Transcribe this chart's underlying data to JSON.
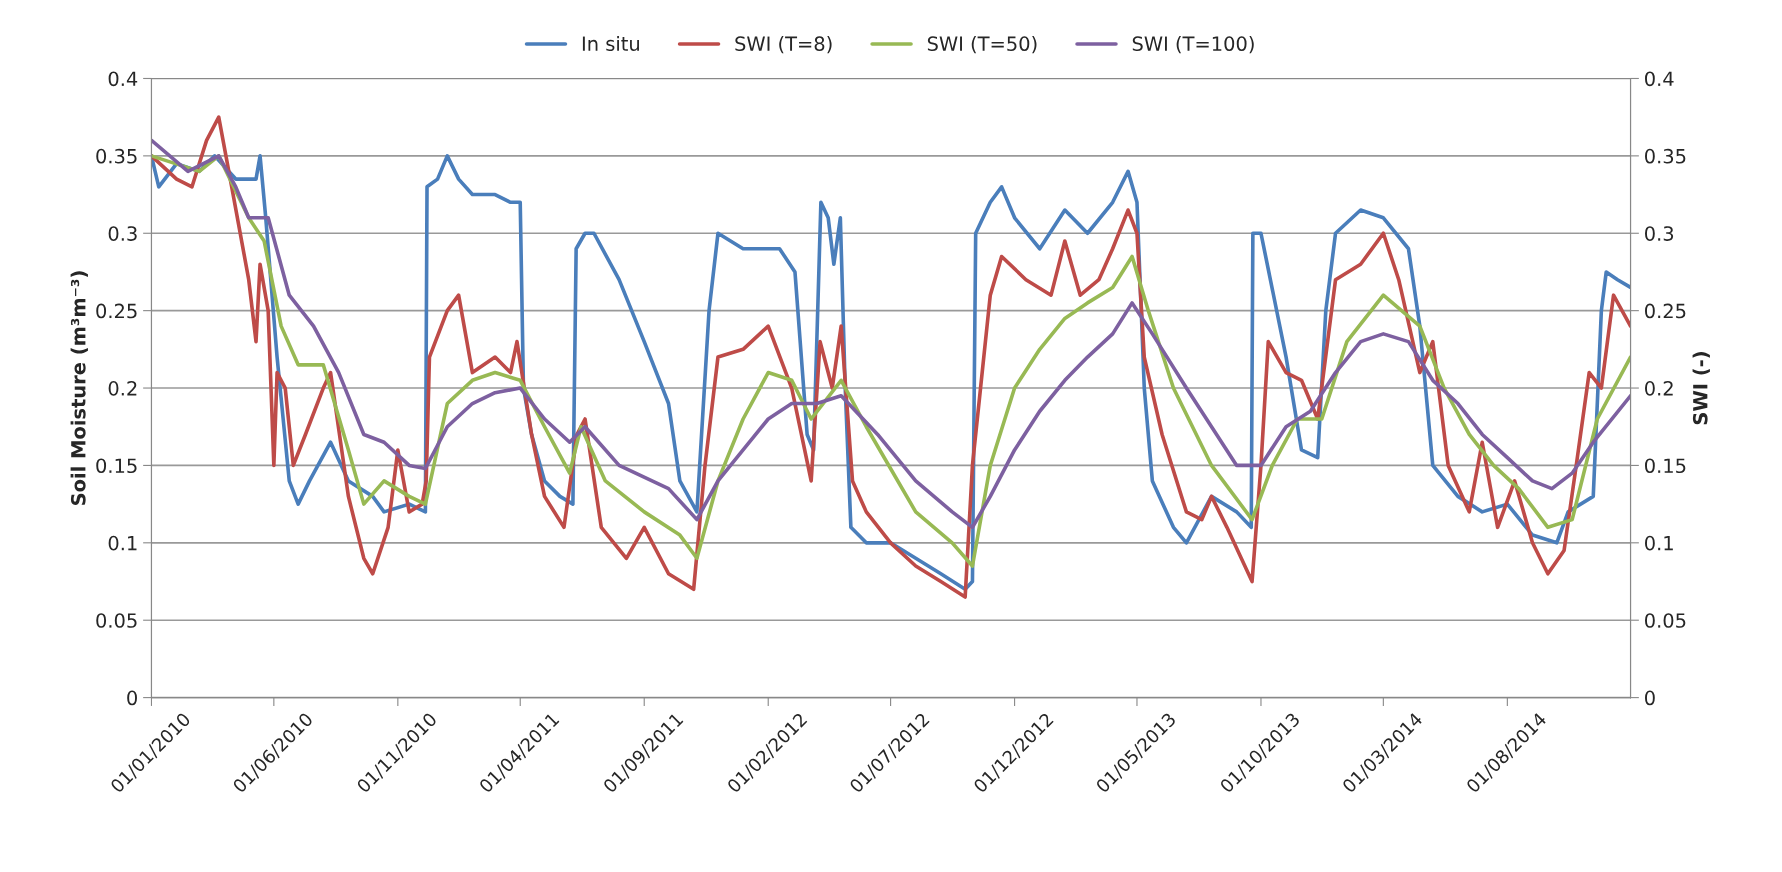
{
  "chart_data": {
    "type": "line",
    "ylabel": "Soil Moisture (m³m⁻³)",
    "y2label": "SWI (-)",
    "xlim": [
      "2010-01-01",
      "2014-12-31"
    ],
    "xticks": [
      {
        "value": "2010-01-01",
        "label": "01/01/2010"
      },
      {
        "value": "2010-06-01",
        "label": "01/06/2010"
      },
      {
        "value": "2010-11-01",
        "label": "01/11/2010"
      },
      {
        "value": "2011-04-01",
        "label": "01/04/2011"
      },
      {
        "value": "2011-09-01",
        "label": "01/09/2011"
      },
      {
        "value": "2012-02-01",
        "label": "01/02/2012"
      },
      {
        "value": "2012-07-01",
        "label": "01/07/2012"
      },
      {
        "value": "2012-12-01",
        "label": "01/12/2012"
      },
      {
        "value": "2013-05-01",
        "label": "01/05/2013"
      },
      {
        "value": "2013-10-01",
        "label": "01/10/2013"
      },
      {
        "value": "2014-03-01",
        "label": "01/03/2014"
      },
      {
        "value": "2014-08-01",
        "label": "01/08/2014"
      }
    ],
    "ylim": [
      0,
      0.4
    ],
    "yticks": [
      0,
      0.05,
      0.1,
      0.15,
      0.2,
      0.25,
      0.3,
      0.35,
      0.4
    ],
    "y2lim": [
      0,
      0.4
    ],
    "y2ticks": [
      0,
      0.05,
      0.1,
      0.15,
      0.2,
      0.25,
      0.3,
      0.35,
      0.4
    ],
    "grid": "y",
    "legend": "top",
    "marker": "none",
    "line_style": "solid",
    "series": [
      {
        "name": "In situ",
        "color": "#4a7ebb",
        "x": [
          "2010-01-01",
          "2010-01-10",
          "2010-02-01",
          "2010-03-01",
          "2010-03-20",
          "2010-04-15",
          "2010-05-10",
          "2010-05-15",
          "2010-05-22",
          "2010-06-05",
          "2010-06-20",
          "2010-07-01",
          "2010-07-15",
          "2010-08-10",
          "2010-09-01",
          "2010-10-01",
          "2010-10-15",
          "2010-11-15",
          "2010-12-05",
          "2010-12-07",
          "2010-12-20",
          "2011-01-01",
          "2011-01-15",
          "2011-02-01",
          "2011-03-01",
          "2011-03-20",
          "2011-04-01",
          "2011-04-05",
          "2011-04-15",
          "2011-05-01",
          "2011-05-20",
          "2011-06-05",
          "2011-06-09",
          "2011-06-20",
          "2011-07-01",
          "2011-08-01",
          "2011-09-01",
          "2011-10-01",
          "2011-10-15",
          "2011-11-05",
          "2011-11-20",
          "2011-12-01",
          "2012-01-01",
          "2012-02-01",
          "2012-02-15",
          "2012-03-05",
          "2012-03-20",
          "2012-03-28",
          "2012-04-06",
          "2012-04-15",
          "2012-04-22",
          "2012-04-30",
          "2012-05-06",
          "2012-05-13",
          "2012-06-01",
          "2012-07-01",
          "2012-08-01",
          "2012-09-01",
          "2012-10-01",
          "2012-10-10",
          "2012-10-14",
          "2012-11-01",
          "2012-11-15",
          "2012-12-01",
          "2013-01-01",
          "2013-02-01",
          "2013-03-01",
          "2013-04-01",
          "2013-04-20",
          "2013-05-01",
          "2013-05-10",
          "2013-05-20",
          "2013-06-15",
          "2013-07-01",
          "2013-08-01",
          "2013-09-01",
          "2013-09-19",
          "2013-09-21",
          "2013-10-01",
          "2013-11-01",
          "2013-11-20",
          "2013-12-10",
          "2013-12-20",
          "2014-01-01",
          "2014-02-01",
          "2014-03-01",
          "2014-04-01",
          "2014-04-15",
          "2014-05-01",
          "2014-06-01",
          "2014-07-01",
          "2014-08-01",
          "2014-09-01",
          "2014-10-01",
          "2014-10-15",
          "2014-11-15",
          "2014-11-25",
          "2014-12-01",
          "2014-12-15",
          "2014-12-31"
        ],
        "values": [
          0.35,
          0.33,
          0.345,
          0.34,
          0.35,
          0.335,
          0.335,
          0.35,
          0.31,
          0.22,
          0.14,
          0.125,
          0.14,
          0.165,
          0.14,
          0.13,
          0.12,
          0.125,
          0.12,
          0.33,
          0.335,
          0.35,
          0.335,
          0.325,
          0.325,
          0.32,
          0.32,
          0.2,
          0.17,
          0.14,
          0.13,
          0.125,
          0.29,
          0.3,
          0.3,
          0.27,
          0.23,
          0.19,
          0.14,
          0.12,
          0.25,
          0.3,
          0.29,
          0.29,
          0.29,
          0.275,
          0.17,
          0.16,
          0.32,
          0.31,
          0.28,
          0.31,
          0.2,
          0.11,
          0.1,
          0.1,
          0.09,
          0.08,
          0.07,
          0.075,
          0.3,
          0.32,
          0.33,
          0.31,
          0.29,
          0.315,
          0.3,
          0.32,
          0.34,
          0.32,
          0.2,
          0.14,
          0.11,
          0.1,
          0.13,
          0.12,
          0.11,
          0.3,
          0.3,
          0.22,
          0.16,
          0.155,
          0.25,
          0.3,
          0.315,
          0.31,
          0.29,
          0.24,
          0.15,
          0.13,
          0.12,
          0.125,
          0.105,
          0.1,
          0.12,
          0.13,
          0.25,
          0.275,
          0.27,
          0.265
        ]
      },
      {
        "name": "SWI (T=8)",
        "color": "#be4b48",
        "x": [
          "2010-01-01",
          "2010-02-01",
          "2010-02-20",
          "2010-03-10",
          "2010-03-25",
          "2010-04-10",
          "2010-05-01",
          "2010-05-10",
          "2010-05-15",
          "2010-05-25",
          "2010-06-01",
          "2010-06-05",
          "2010-06-15",
          "2010-06-25",
          "2010-07-10",
          "2010-08-01",
          "2010-08-10",
          "2010-09-01",
          "2010-09-20",
          "2010-10-01",
          "2010-10-20",
          "2010-11-01",
          "2010-11-15",
          "2010-12-01",
          "2010-12-06",
          "2010-12-10",
          "2011-01-01",
          "2011-01-15",
          "2011-02-01",
          "2011-03-01",
          "2011-03-20",
          "2011-03-28",
          "2011-04-15",
          "2011-05-01",
          "2011-05-25",
          "2011-06-10",
          "2011-06-20",
          "2011-07-10",
          "2011-08-10",
          "2011-09-01",
          "2011-10-01",
          "2011-11-01",
          "2011-11-15",
          "2011-12-01",
          "2012-01-01",
          "2012-02-01",
          "2012-03-01",
          "2012-03-25",
          "2012-04-05",
          "2012-04-20",
          "2012-05-01",
          "2012-05-15",
          "2012-06-01",
          "2012-07-01",
          "2012-08-01",
          "2012-09-01",
          "2012-10-01",
          "2012-10-10",
          "2012-10-20",
          "2012-11-01",
          "2012-11-15",
          "2012-12-15",
          "2013-01-15",
          "2013-02-01",
          "2013-02-20",
          "2013-03-15",
          "2013-04-01",
          "2013-04-20",
          "2013-05-01",
          "2013-05-10",
          "2013-06-01",
          "2013-07-01",
          "2013-07-20",
          "2013-08-01",
          "2013-08-20",
          "2013-09-20",
          "2013-10-01",
          "2013-10-10",
          "2013-11-01",
          "2013-11-20",
          "2013-12-10",
          "2014-01-01",
          "2014-02-01",
          "2014-03-01",
          "2014-03-20",
          "2014-04-15",
          "2014-05-01",
          "2014-05-20",
          "2014-06-15",
          "2014-07-01",
          "2014-07-20",
          "2014-08-10",
          "2014-09-01",
          "2014-09-20",
          "2014-10-10",
          "2014-10-25",
          "2014-11-10",
          "2014-11-25",
          "2014-12-10",
          "2014-12-31"
        ],
        "values": [
          0.35,
          0.335,
          0.33,
          0.36,
          0.375,
          0.33,
          0.27,
          0.23,
          0.28,
          0.25,
          0.15,
          0.21,
          0.2,
          0.15,
          0.17,
          0.2,
          0.21,
          0.13,
          0.09,
          0.08,
          0.11,
          0.16,
          0.12,
          0.125,
          0.14,
          0.22,
          0.25,
          0.26,
          0.21,
          0.22,
          0.21,
          0.23,
          0.17,
          0.13,
          0.11,
          0.17,
          0.18,
          0.11,
          0.09,
          0.11,
          0.08,
          0.07,
          0.15,
          0.22,
          0.225,
          0.24,
          0.2,
          0.14,
          0.23,
          0.2,
          0.24,
          0.14,
          0.12,
          0.1,
          0.085,
          0.075,
          0.065,
          0.15,
          0.2,
          0.26,
          0.285,
          0.27,
          0.26,
          0.295,
          0.26,
          0.27,
          0.29,
          0.315,
          0.3,
          0.22,
          0.17,
          0.12,
          0.115,
          0.13,
          0.11,
          0.075,
          0.15,
          0.23,
          0.21,
          0.205,
          0.18,
          0.27,
          0.28,
          0.3,
          0.27,
          0.21,
          0.23,
          0.15,
          0.12,
          0.165,
          0.11,
          0.14,
          0.1,
          0.08,
          0.095,
          0.15,
          0.21,
          0.2,
          0.26,
          0.24
        ]
      },
      {
        "name": "SWI (T=50)",
        "color": "#98b954",
        "x": [
          "2010-01-01",
          "2010-03-01",
          "2010-03-25",
          "2010-05-01",
          "2010-05-20",
          "2010-06-10",
          "2010-07-01",
          "2010-08-01",
          "2010-09-01",
          "2010-09-20",
          "2010-10-15",
          "2010-11-15",
          "2010-12-05",
          "2011-01-01",
          "2011-02-01",
          "2011-03-01",
          "2011-04-01",
          "2011-05-01",
          "2011-06-01",
          "2011-06-15",
          "2011-07-15",
          "2011-09-01",
          "2011-10-15",
          "2011-11-05",
          "2011-12-01",
          "2012-01-01",
          "2012-02-01",
          "2012-03-01",
          "2012-03-25",
          "2012-05-01",
          "2012-06-01",
          "2012-08-01",
          "2012-09-15",
          "2012-10-10",
          "2012-11-01",
          "2012-12-01",
          "2013-01-01",
          "2013-02-01",
          "2013-03-01",
          "2013-04-01",
          "2013-04-25",
          "2013-05-15",
          "2013-06-15",
          "2013-08-01",
          "2013-09-20",
          "2013-10-15",
          "2013-11-15",
          "2013-12-15",
          "2014-01-15",
          "2014-03-01",
          "2014-04-15",
          "2014-05-15",
          "2014-06-15",
          "2014-07-15",
          "2014-08-15",
          "2014-09-20",
          "2014-10-20",
          "2014-11-20",
          "2014-12-31"
        ],
        "values": [
          0.35,
          0.34,
          0.35,
          0.31,
          0.295,
          0.24,
          0.215,
          0.215,
          0.16,
          0.125,
          0.14,
          0.13,
          0.125,
          0.19,
          0.205,
          0.21,
          0.205,
          0.175,
          0.145,
          0.175,
          0.14,
          0.12,
          0.105,
          0.09,
          0.14,
          0.18,
          0.21,
          0.205,
          0.18,
          0.205,
          0.175,
          0.12,
          0.1,
          0.085,
          0.15,
          0.2,
          0.225,
          0.245,
          0.255,
          0.265,
          0.285,
          0.25,
          0.2,
          0.15,
          0.115,
          0.15,
          0.18,
          0.18,
          0.23,
          0.26,
          0.24,
          0.2,
          0.17,
          0.15,
          0.135,
          0.11,
          0.115,
          0.18,
          0.22
        ]
      },
      {
        "name": "SWI (T=100)",
        "color": "#7d60a0",
        "x": [
          "2010-01-01",
          "2010-02-15",
          "2010-03-25",
          "2010-04-15",
          "2010-05-01",
          "2010-05-25",
          "2010-06-20",
          "2010-07-20",
          "2010-08-20",
          "2010-09-20",
          "2010-10-15",
          "2010-11-15",
          "2010-12-05",
          "2011-01-01",
          "2011-02-01",
          "2011-03-01",
          "2011-04-01",
          "2011-05-01",
          "2011-06-01",
          "2011-06-20",
          "2011-08-01",
          "2011-10-01",
          "2011-11-05",
          "2011-12-01",
          "2012-01-01",
          "2012-02-01",
          "2012-03-01",
          "2012-04-01",
          "2012-05-01",
          "2012-06-15",
          "2012-08-01",
          "2012-09-15",
          "2012-10-10",
          "2012-11-01",
          "2012-12-01",
          "2013-01-01",
          "2013-02-01",
          "2013-03-01",
          "2013-04-01",
          "2013-04-25",
          "2013-05-20",
          "2013-07-01",
          "2013-08-01",
          "2013-09-01",
          "2013-10-01",
          "2013-11-01",
          "2013-12-01",
          "2014-01-01",
          "2014-02-01",
          "2014-03-01",
          "2014-04-01",
          "2014-05-01",
          "2014-06-01",
          "2014-07-01",
          "2014-08-01",
          "2014-09-01",
          "2014-09-25",
          "2014-10-20",
          "2014-11-15",
          "2014-12-31"
        ],
        "values": [
          0.36,
          0.34,
          0.35,
          0.33,
          0.31,
          0.31,
          0.26,
          0.24,
          0.21,
          0.17,
          0.165,
          0.15,
          0.148,
          0.175,
          0.19,
          0.197,
          0.2,
          0.18,
          0.165,
          0.175,
          0.15,
          0.135,
          0.115,
          0.14,
          0.16,
          0.18,
          0.19,
          0.19,
          0.195,
          0.17,
          0.14,
          0.12,
          0.11,
          0.13,
          0.16,
          0.185,
          0.205,
          0.22,
          0.235,
          0.255,
          0.235,
          0.2,
          0.175,
          0.15,
          0.15,
          0.175,
          0.185,
          0.21,
          0.23,
          0.235,
          0.23,
          0.205,
          0.19,
          0.17,
          0.155,
          0.14,
          0.135,
          0.145,
          0.165,
          0.195
        ]
      }
    ]
  }
}
